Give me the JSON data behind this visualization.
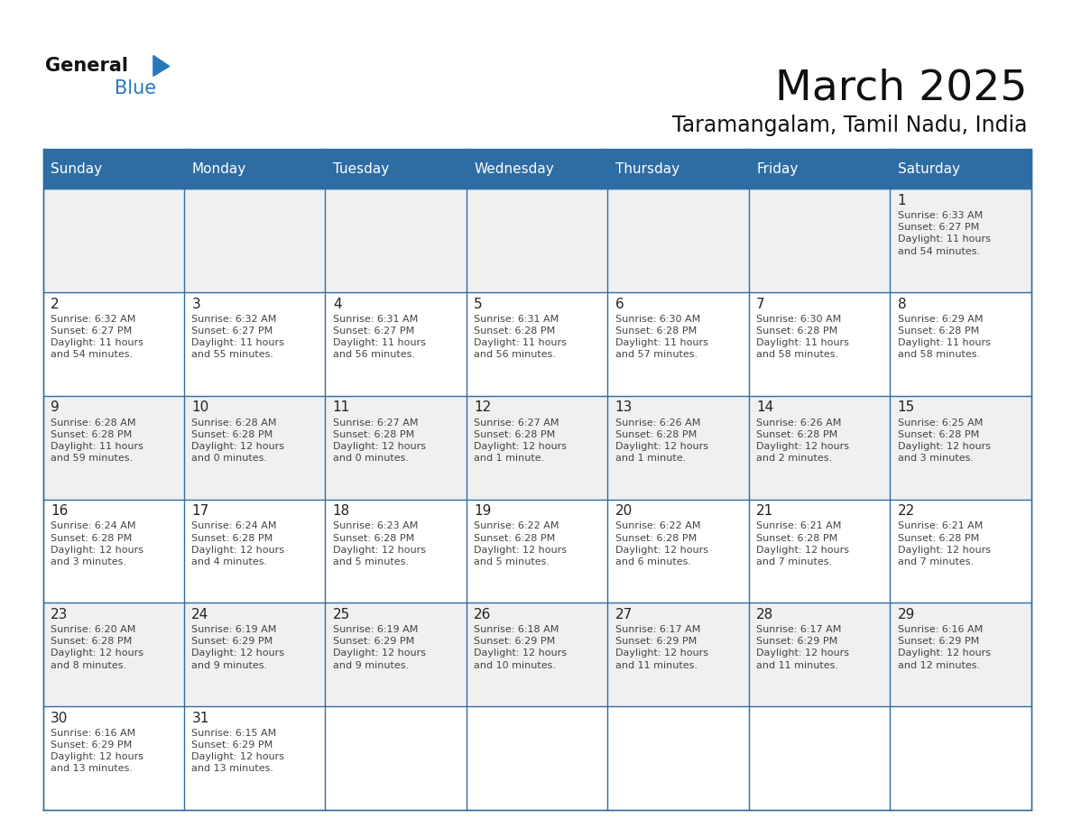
{
  "title": "March 2025",
  "subtitle": "Taramangalam, Tamil Nadu, India",
  "header_bg": "#2E6DA4",
  "header_text_color": "#FFFFFF",
  "day_names": [
    "Sunday",
    "Monday",
    "Tuesday",
    "Wednesday",
    "Thursday",
    "Friday",
    "Saturday"
  ],
  "odd_row_bg": "#F0F0F0",
  "even_row_bg": "#FFFFFF",
  "cell_text_color": "#444444",
  "day_num_color": "#222222",
  "border_color": "#2E6DA4",
  "title_color": "#111111",
  "subtitle_color": "#111111",
  "logo_general_color": "#111111",
  "logo_blue_color": "#2878BE",
  "calendar": [
    [
      null,
      null,
      null,
      null,
      null,
      null,
      {
        "day": 1,
        "sunrise": "6:33 AM",
        "sunset": "6:27 PM",
        "daylight": "11 hours\nand 54 minutes."
      }
    ],
    [
      {
        "day": 2,
        "sunrise": "6:32 AM",
        "sunset": "6:27 PM",
        "daylight": "11 hours\nand 54 minutes."
      },
      {
        "day": 3,
        "sunrise": "6:32 AM",
        "sunset": "6:27 PM",
        "daylight": "11 hours\nand 55 minutes."
      },
      {
        "day": 4,
        "sunrise": "6:31 AM",
        "sunset": "6:27 PM",
        "daylight": "11 hours\nand 56 minutes."
      },
      {
        "day": 5,
        "sunrise": "6:31 AM",
        "sunset": "6:28 PM",
        "daylight": "11 hours\nand 56 minutes."
      },
      {
        "day": 6,
        "sunrise": "6:30 AM",
        "sunset": "6:28 PM",
        "daylight": "11 hours\nand 57 minutes."
      },
      {
        "day": 7,
        "sunrise": "6:30 AM",
        "sunset": "6:28 PM",
        "daylight": "11 hours\nand 58 minutes."
      },
      {
        "day": 8,
        "sunrise": "6:29 AM",
        "sunset": "6:28 PM",
        "daylight": "11 hours\nand 58 minutes."
      }
    ],
    [
      {
        "day": 9,
        "sunrise": "6:28 AM",
        "sunset": "6:28 PM",
        "daylight": "11 hours\nand 59 minutes."
      },
      {
        "day": 10,
        "sunrise": "6:28 AM",
        "sunset": "6:28 PM",
        "daylight": "12 hours\nand 0 minutes."
      },
      {
        "day": 11,
        "sunrise": "6:27 AM",
        "sunset": "6:28 PM",
        "daylight": "12 hours\nand 0 minutes."
      },
      {
        "day": 12,
        "sunrise": "6:27 AM",
        "sunset": "6:28 PM",
        "daylight": "12 hours\nand 1 minute."
      },
      {
        "day": 13,
        "sunrise": "6:26 AM",
        "sunset": "6:28 PM",
        "daylight": "12 hours\nand 1 minute."
      },
      {
        "day": 14,
        "sunrise": "6:26 AM",
        "sunset": "6:28 PM",
        "daylight": "12 hours\nand 2 minutes."
      },
      {
        "day": 15,
        "sunrise": "6:25 AM",
        "sunset": "6:28 PM",
        "daylight": "12 hours\nand 3 minutes."
      }
    ],
    [
      {
        "day": 16,
        "sunrise": "6:24 AM",
        "sunset": "6:28 PM",
        "daylight": "12 hours\nand 3 minutes."
      },
      {
        "day": 17,
        "sunrise": "6:24 AM",
        "sunset": "6:28 PM",
        "daylight": "12 hours\nand 4 minutes."
      },
      {
        "day": 18,
        "sunrise": "6:23 AM",
        "sunset": "6:28 PM",
        "daylight": "12 hours\nand 5 minutes."
      },
      {
        "day": 19,
        "sunrise": "6:22 AM",
        "sunset": "6:28 PM",
        "daylight": "12 hours\nand 5 minutes."
      },
      {
        "day": 20,
        "sunrise": "6:22 AM",
        "sunset": "6:28 PM",
        "daylight": "12 hours\nand 6 minutes."
      },
      {
        "day": 21,
        "sunrise": "6:21 AM",
        "sunset": "6:28 PM",
        "daylight": "12 hours\nand 7 minutes."
      },
      {
        "day": 22,
        "sunrise": "6:21 AM",
        "sunset": "6:28 PM",
        "daylight": "12 hours\nand 7 minutes."
      }
    ],
    [
      {
        "day": 23,
        "sunrise": "6:20 AM",
        "sunset": "6:28 PM",
        "daylight": "12 hours\nand 8 minutes."
      },
      {
        "day": 24,
        "sunrise": "6:19 AM",
        "sunset": "6:29 PM",
        "daylight": "12 hours\nand 9 minutes."
      },
      {
        "day": 25,
        "sunrise": "6:19 AM",
        "sunset": "6:29 PM",
        "daylight": "12 hours\nand 9 minutes."
      },
      {
        "day": 26,
        "sunrise": "6:18 AM",
        "sunset": "6:29 PM",
        "daylight": "12 hours\nand 10 minutes."
      },
      {
        "day": 27,
        "sunrise": "6:17 AM",
        "sunset": "6:29 PM",
        "daylight": "12 hours\nand 11 minutes."
      },
      {
        "day": 28,
        "sunrise": "6:17 AM",
        "sunset": "6:29 PM",
        "daylight": "12 hours\nand 11 minutes."
      },
      {
        "day": 29,
        "sunrise": "6:16 AM",
        "sunset": "6:29 PM",
        "daylight": "12 hours\nand 12 minutes."
      }
    ],
    [
      {
        "day": 30,
        "sunrise": "6:16 AM",
        "sunset": "6:29 PM",
        "daylight": "12 hours\nand 13 minutes."
      },
      {
        "day": 31,
        "sunrise": "6:15 AM",
        "sunset": "6:29 PM",
        "daylight": "12 hours\nand 13 minutes."
      },
      null,
      null,
      null,
      null,
      null
    ]
  ],
  "figsize": [
    11.88,
    9.18
  ],
  "dpi": 100
}
